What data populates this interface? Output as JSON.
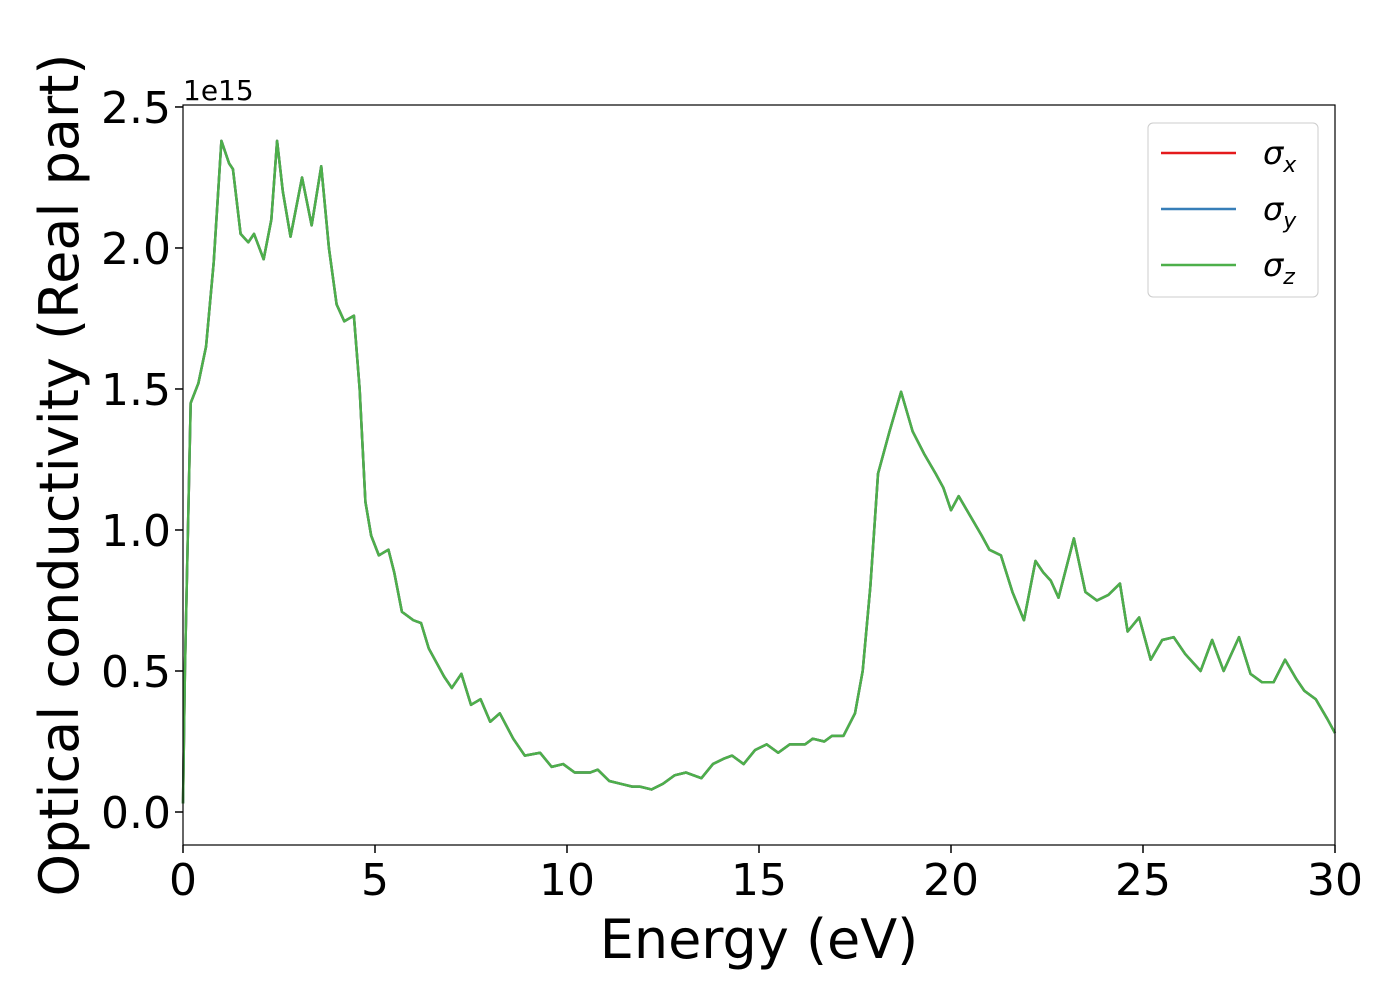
{
  "chart_data": {
    "type": "line",
    "xlabel": "Energy (eV)",
    "ylabel": "Optical conductivity (Real part)",
    "y_offset_text": "1e15",
    "x": [
      0,
      0.05,
      0.2,
      0.4,
      0.6,
      0.8,
      1.0,
      1.2,
      1.3,
      1.5,
      1.7,
      1.85,
      2.1,
      2.3,
      2.45,
      2.6,
      2.8,
      3.1,
      3.35,
      3.6,
      3.8,
      4.0,
      4.2,
      4.45,
      4.6,
      4.75,
      4.9,
      5.1,
      5.35,
      5.5,
      5.7,
      6.0,
      6.2,
      6.4,
      6.8,
      7.0,
      7.25,
      7.5,
      7.75,
      8.0,
      8.25,
      8.6,
      8.9,
      9.3,
      9.6,
      9.9,
      10.2,
      10.6,
      10.8,
      11.1,
      11.4,
      11.7,
      11.9,
      12.2,
      12.5,
      12.8,
      13.1,
      13.5,
      13.8,
      14.1,
      14.3,
      14.6,
      14.9,
      15.2,
      15.5,
      15.8,
      16.2,
      16.4,
      16.7,
      16.9,
      17.2,
      17.5,
      17.7,
      17.9,
      18.1,
      18.4,
      18.7,
      19.0,
      19.3,
      19.6,
      19.8,
      20.0,
      20.2,
      20.5,
      20.8,
      21.0,
      21.3,
      21.6,
      21.9,
      22.2,
      22.4,
      22.6,
      22.8,
      23.2,
      23.5,
      23.8,
      24.1,
      24.4,
      24.6,
      24.9,
      25.2,
      25.5,
      25.8,
      26.1,
      26.5,
      26.8,
      27.1,
      27.5,
      27.8,
      28.1,
      28.4,
      28.7,
      29.0,
      29.2,
      29.5,
      29.8,
      30
    ],
    "series": [
      {
        "name": "σx",
        "color": "#e41a1c",
        "values": [
          0.03,
          0.5,
          1.45,
          1.52,
          1.65,
          1.95,
          2.38,
          2.3,
          2.28,
          2.05,
          2.02,
          2.05,
          1.96,
          2.1,
          2.38,
          2.2,
          2.04,
          2.25,
          2.08,
          2.29,
          2.0,
          1.8,
          1.74,
          1.76,
          1.5,
          1.1,
          0.98,
          0.91,
          0.93,
          0.85,
          0.71,
          0.68,
          0.67,
          0.58,
          0.48,
          0.44,
          0.49,
          0.38,
          0.4,
          0.32,
          0.35,
          0.26,
          0.2,
          0.21,
          0.16,
          0.17,
          0.14,
          0.14,
          0.15,
          0.11,
          0.1,
          0.09,
          0.09,
          0.08,
          0.1,
          0.13,
          0.14,
          0.12,
          0.17,
          0.19,
          0.2,
          0.17,
          0.22,
          0.24,
          0.21,
          0.24,
          0.24,
          0.26,
          0.25,
          0.27,
          0.27,
          0.35,
          0.5,
          0.8,
          1.2,
          1.35,
          1.49,
          1.35,
          1.27,
          1.2,
          1.15,
          1.07,
          1.12,
          1.05,
          0.98,
          0.93,
          0.91,
          0.78,
          0.68,
          0.89,
          0.85,
          0.82,
          0.76,
          0.97,
          0.78,
          0.75,
          0.77,
          0.81,
          0.64,
          0.69,
          0.54,
          0.61,
          0.62,
          0.56,
          0.5,
          0.61,
          0.5,
          0.62,
          0.49,
          0.46,
          0.46,
          0.54,
          0.47,
          0.43,
          0.4,
          0.33,
          0.28
        ]
      },
      {
        "name": "σy",
        "color": "#377eb8",
        "values": [
          0.03,
          0.5,
          1.45,
          1.52,
          1.65,
          1.95,
          2.38,
          2.3,
          2.28,
          2.05,
          2.02,
          2.05,
          1.96,
          2.1,
          2.38,
          2.2,
          2.04,
          2.25,
          2.08,
          2.29,
          2.0,
          1.8,
          1.74,
          1.76,
          1.5,
          1.1,
          0.98,
          0.91,
          0.93,
          0.85,
          0.71,
          0.68,
          0.67,
          0.58,
          0.48,
          0.44,
          0.49,
          0.38,
          0.4,
          0.32,
          0.35,
          0.26,
          0.2,
          0.21,
          0.16,
          0.17,
          0.14,
          0.14,
          0.15,
          0.11,
          0.1,
          0.09,
          0.09,
          0.08,
          0.1,
          0.13,
          0.14,
          0.12,
          0.17,
          0.19,
          0.2,
          0.17,
          0.22,
          0.24,
          0.21,
          0.24,
          0.24,
          0.26,
          0.25,
          0.27,
          0.27,
          0.35,
          0.5,
          0.8,
          1.2,
          1.35,
          1.49,
          1.35,
          1.27,
          1.2,
          1.15,
          1.07,
          1.12,
          1.05,
          0.98,
          0.93,
          0.91,
          0.78,
          0.68,
          0.89,
          0.85,
          0.82,
          0.76,
          0.97,
          0.78,
          0.75,
          0.77,
          0.81,
          0.64,
          0.69,
          0.54,
          0.61,
          0.62,
          0.56,
          0.5,
          0.61,
          0.5,
          0.62,
          0.49,
          0.46,
          0.46,
          0.54,
          0.47,
          0.43,
          0.4,
          0.33,
          0.28
        ]
      },
      {
        "name": "σz",
        "color": "#4daf4a",
        "values": [
          0.03,
          0.5,
          1.45,
          1.52,
          1.65,
          1.95,
          2.38,
          2.3,
          2.28,
          2.05,
          2.02,
          2.05,
          1.96,
          2.1,
          2.38,
          2.2,
          2.04,
          2.25,
          2.08,
          2.29,
          2.0,
          1.8,
          1.74,
          1.76,
          1.5,
          1.1,
          0.98,
          0.91,
          0.93,
          0.85,
          0.71,
          0.68,
          0.67,
          0.58,
          0.48,
          0.44,
          0.49,
          0.38,
          0.4,
          0.32,
          0.35,
          0.26,
          0.2,
          0.21,
          0.16,
          0.17,
          0.14,
          0.14,
          0.15,
          0.11,
          0.1,
          0.09,
          0.09,
          0.08,
          0.1,
          0.13,
          0.14,
          0.12,
          0.17,
          0.19,
          0.2,
          0.17,
          0.22,
          0.24,
          0.21,
          0.24,
          0.24,
          0.26,
          0.25,
          0.27,
          0.27,
          0.35,
          0.5,
          0.8,
          1.2,
          1.35,
          1.49,
          1.35,
          1.27,
          1.2,
          1.15,
          1.07,
          1.12,
          1.05,
          0.98,
          0.93,
          0.91,
          0.78,
          0.68,
          0.89,
          0.85,
          0.82,
          0.76,
          0.97,
          0.78,
          0.75,
          0.77,
          0.81,
          0.64,
          0.69,
          0.54,
          0.61,
          0.62,
          0.56,
          0.5,
          0.61,
          0.5,
          0.62,
          0.49,
          0.46,
          0.46,
          0.54,
          0.47,
          0.43,
          0.4,
          0.33,
          0.28
        ]
      }
    ],
    "xlim": [
      0,
      30
    ],
    "xticks": [
      0,
      5,
      10,
      15,
      20,
      25,
      30
    ],
    "ylim": [
      -0.117,
      2.507
    ],
    "yticks": [
      {
        "value": 0,
        "label": "0.0"
      },
      0.5,
      {
        "value": 1,
        "label": "1.0"
      },
      1.5,
      {
        "value": 2,
        "label": "2.0"
      },
      2.5
    ],
    "legend": "upper right",
    "grid": false
  }
}
